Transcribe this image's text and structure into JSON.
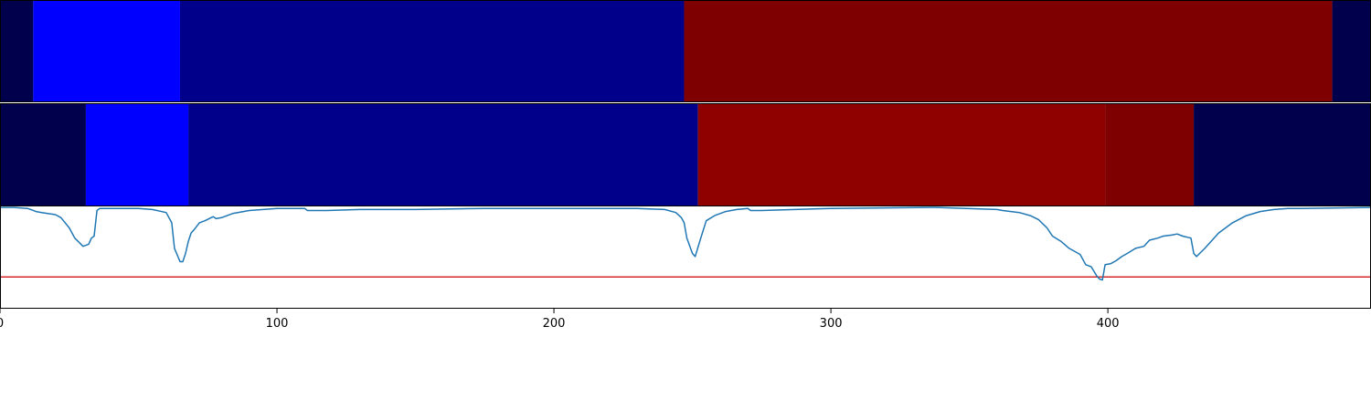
{
  "chart_data": [
    {
      "type": "heatmap",
      "segments": [
        {
          "start": 0,
          "end": 12,
          "color": "#00004d"
        },
        {
          "start": 12,
          "end": 65,
          "color": "#0000ff"
        },
        {
          "start": 65,
          "end": 247,
          "color": "#00008b"
        },
        {
          "start": 247,
          "end": 481,
          "color": "#7f0000"
        },
        {
          "start": 481,
          "end": 495,
          "color": "#00004d"
        }
      ]
    },
    {
      "type": "heatmap",
      "segments": [
        {
          "start": 0,
          "end": 31,
          "color": "#00004d"
        },
        {
          "start": 31,
          "end": 68,
          "color": "#0000ff"
        },
        {
          "start": 68,
          "end": 252,
          "color": "#00008b"
        },
        {
          "start": 252,
          "end": 399,
          "color": "#8f0000"
        },
        {
          "start": 399,
          "end": 431,
          "color": "#7f0000"
        },
        {
          "start": 431,
          "end": 495,
          "color": "#00004d"
        }
      ]
    },
    {
      "type": "line",
      "xlim": [
        0,
        495
      ],
      "ylim": [
        -0.99,
        0.01
      ],
      "xticks": [
        "0",
        "100",
        "200",
        "300",
        "400"
      ],
      "threshold": -0.68,
      "threshold_color": "#d62728",
      "series": [
        {
          "color": "#1f77b4",
          "x": [
            0,
            5,
            10,
            13,
            15,
            20,
            22,
            25,
            27,
            30,
            32,
            33,
            34,
            35,
            36,
            40,
            45,
            50,
            55,
            60,
            62,
            63,
            65,
            66,
            67,
            68,
            69,
            70,
            72,
            74,
            77,
            78,
            80,
            84,
            90,
            95,
            100,
            104,
            110,
            111,
            113,
            118,
            130,
            150,
            175,
            230,
            240,
            244,
            246,
            247,
            248,
            250,
            251,
            253,
            255,
            258,
            262,
            266,
            270,
            271,
            275,
            300,
            338,
            360,
            362,
            368,
            372,
            375,
            378,
            380,
            383,
            386,
            390,
            392,
            394,
            396,
            397,
            398,
            399,
            401,
            403,
            405,
            407,
            410,
            413,
            415,
            418,
            420,
            423,
            425,
            427,
            430,
            431,
            432,
            435,
            440,
            445,
            450,
            455,
            460,
            465,
            470,
            495
          ],
          "y": [
            0.0,
            0.0,
            -0.01,
            -0.04,
            -0.05,
            -0.07,
            -0.1,
            -0.2,
            -0.3,
            -0.38,
            -0.36,
            -0.3,
            -0.28,
            -0.03,
            -0.01,
            -0.01,
            -0.01,
            -0.01,
            -0.02,
            -0.05,
            -0.15,
            -0.4,
            -0.53,
            -0.53,
            -0.45,
            -0.33,
            -0.25,
            -0.22,
            -0.15,
            -0.13,
            -0.09,
            -0.11,
            -0.1,
            -0.06,
            -0.03,
            -0.02,
            -0.01,
            -0.01,
            -0.01,
            -0.03,
            -0.03,
            -0.03,
            -0.02,
            -0.02,
            -0.01,
            -0.01,
            -0.02,
            -0.05,
            -0.1,
            -0.15,
            -0.3,
            -0.45,
            -0.48,
            -0.3,
            -0.13,
            -0.08,
            -0.04,
            -0.02,
            -0.01,
            -0.03,
            -0.03,
            -0.01,
            0.0,
            -0.02,
            -0.03,
            -0.05,
            -0.08,
            -0.12,
            -0.2,
            -0.28,
            -0.33,
            -0.4,
            -0.46,
            -0.56,
            -0.58,
            -0.67,
            -0.7,
            -0.71,
            -0.56,
            -0.55,
            -0.52,
            -0.48,
            -0.45,
            -0.4,
            -0.38,
            -0.32,
            -0.3,
            -0.28,
            -0.27,
            -0.26,
            -0.28,
            -0.3,
            -0.45,
            -0.48,
            -0.4,
            -0.25,
            -0.15,
            -0.08,
            -0.04,
            -0.02,
            -0.01,
            -0.01,
            0.0
          ]
        }
      ]
    }
  ]
}
